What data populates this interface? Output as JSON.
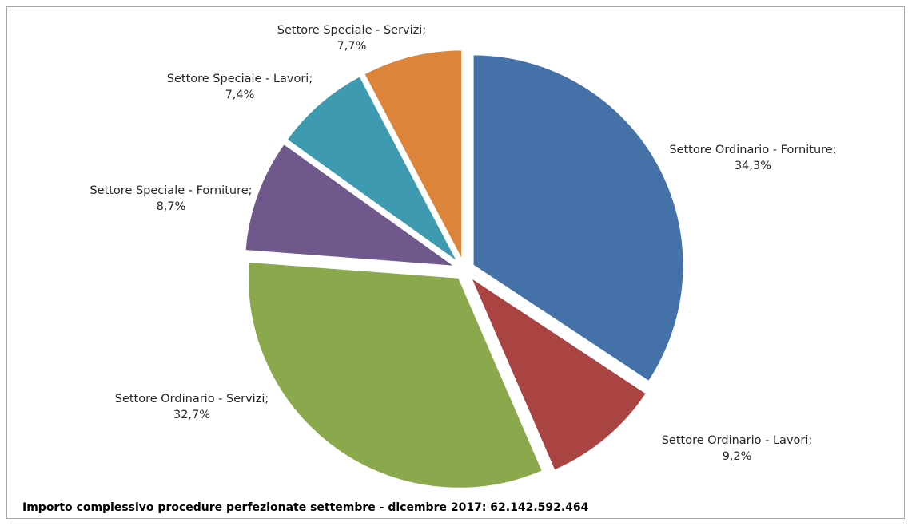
{
  "chart_data": {
    "type": "pie",
    "slices": [
      {
        "label": "Settore Ordinario - Forniture",
        "value_text": "34,3%",
        "value": 34.3,
        "color": "#4472a8",
        "exploded": true
      },
      {
        "label": "Settore Ordinario - Lavori",
        "value_text": "9,2%",
        "value": 9.2,
        "color": "#a94442",
        "exploded": true
      },
      {
        "label": "Settore Ordinario - Servizi",
        "value_text": "32,7%",
        "value": 32.7,
        "color": "#8aa84c",
        "exploded": true
      },
      {
        "label": "Settore Speciale - Forniture",
        "value_text": "8,7%",
        "value": 8.7,
        "color": "#70578c",
        "exploded": true
      },
      {
        "label": "Settore Speciale - Lavori",
        "value_text": "7,4%",
        "value": 7.4,
        "color": "#3e9ab0",
        "exploded": true
      },
      {
        "label": "Settore Speciale - Servizi",
        "value_text": "7,7%",
        "value": 7.7,
        "color": "#dc853a",
        "exploded": true
      }
    ],
    "legend": "none",
    "footnote": "Importo  complessivo procedure perfezionate settembre - dicembre 2017:  62.142.592.464"
  }
}
